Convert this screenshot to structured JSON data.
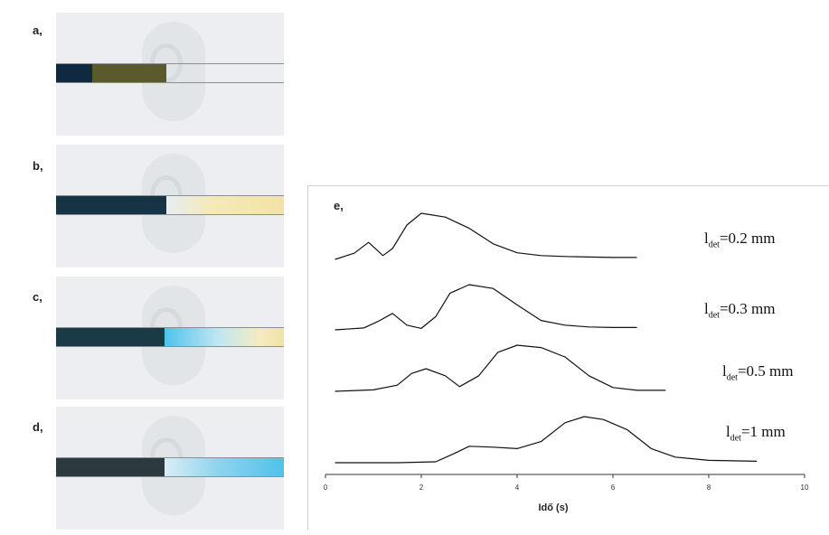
{
  "panels": [
    {
      "label": "a,"
    },
    {
      "label": "b,"
    },
    {
      "label": "c,"
    },
    {
      "label": "d,"
    }
  ],
  "colors": {
    "dark_blue": "#10283a",
    "olive": "#5b5a2c",
    "light_yellow": "#f2e6b0",
    "light_blue": "#8ed3ee",
    "bright_blue": "#4fc2ec",
    "tube_gray": "#8a8f96"
  },
  "chart": {
    "panel_label": "e,",
    "xlabel": "Idő (s)",
    "xticks": [
      "0",
      "2",
      "4",
      "6",
      "8",
      "10"
    ]
  },
  "chart_data": {
    "type": "line",
    "xlabel": "Idő (s)",
    "xlim": [
      0,
      10
    ],
    "xticks": [
      0,
      2,
      4,
      6,
      8,
      10
    ],
    "series": [
      {
        "name": "ldet=0.2 mm",
        "label_main": "l",
        "label_sub": "det",
        "label_rest": "=0.2 mm",
        "x": [
          0.2,
          0.6,
          0.9,
          1.2,
          1.4,
          1.7,
          2.0,
          2.5,
          3.0,
          3.5,
          4.0,
          4.5,
          5.0,
          5.5,
          6.0,
          6.5
        ],
        "y": [
          0.02,
          0.15,
          0.38,
          0.1,
          0.25,
          0.75,
          1.0,
          0.92,
          0.68,
          0.35,
          0.16,
          0.1,
          0.08,
          0.07,
          0.06,
          0.06
        ]
      },
      {
        "name": "ldet=0.3 mm",
        "label_main": "l",
        "label_sub": "det",
        "label_rest": "=0.3 mm",
        "x": [
          0.2,
          0.8,
          1.1,
          1.4,
          1.7,
          2.0,
          2.3,
          2.6,
          3.0,
          3.5,
          4.0,
          4.5,
          5.0,
          5.5,
          6.0,
          6.5
        ],
        "y": [
          0.02,
          0.06,
          0.2,
          0.37,
          0.12,
          0.05,
          0.3,
          0.8,
          0.98,
          0.9,
          0.55,
          0.22,
          0.12,
          0.08,
          0.07,
          0.07
        ]
      },
      {
        "name": "ldet=0.5 mm",
        "label_main": "l",
        "label_sub": "det",
        "label_rest": "=0.5 mm",
        "x": [
          0.2,
          1.0,
          1.5,
          1.8,
          2.1,
          2.5,
          2.8,
          3.2,
          3.6,
          4.0,
          4.5,
          5.0,
          5.5,
          6.0,
          6.5,
          7.1
        ],
        "y": [
          0.02,
          0.05,
          0.15,
          0.4,
          0.5,
          0.35,
          0.12,
          0.35,
          0.85,
          1.0,
          0.95,
          0.75,
          0.35,
          0.1,
          0.04,
          0.04
        ]
      },
      {
        "name": "ldet=1 mm",
        "label_main": "l",
        "label_sub": "det",
        "label_rest": "=1 mm",
        "x": [
          0.2,
          1.5,
          2.3,
          2.7,
          3.0,
          3.5,
          4.0,
          4.5,
          5.0,
          5.4,
          5.8,
          6.3,
          6.8,
          7.3,
          8.0,
          9.0
        ],
        "y": [
          0.0,
          0.0,
          0.02,
          0.2,
          0.35,
          0.33,
          0.3,
          0.45,
          0.85,
          0.98,
          0.92,
          0.7,
          0.3,
          0.12,
          0.05,
          0.03
        ]
      }
    ]
  }
}
